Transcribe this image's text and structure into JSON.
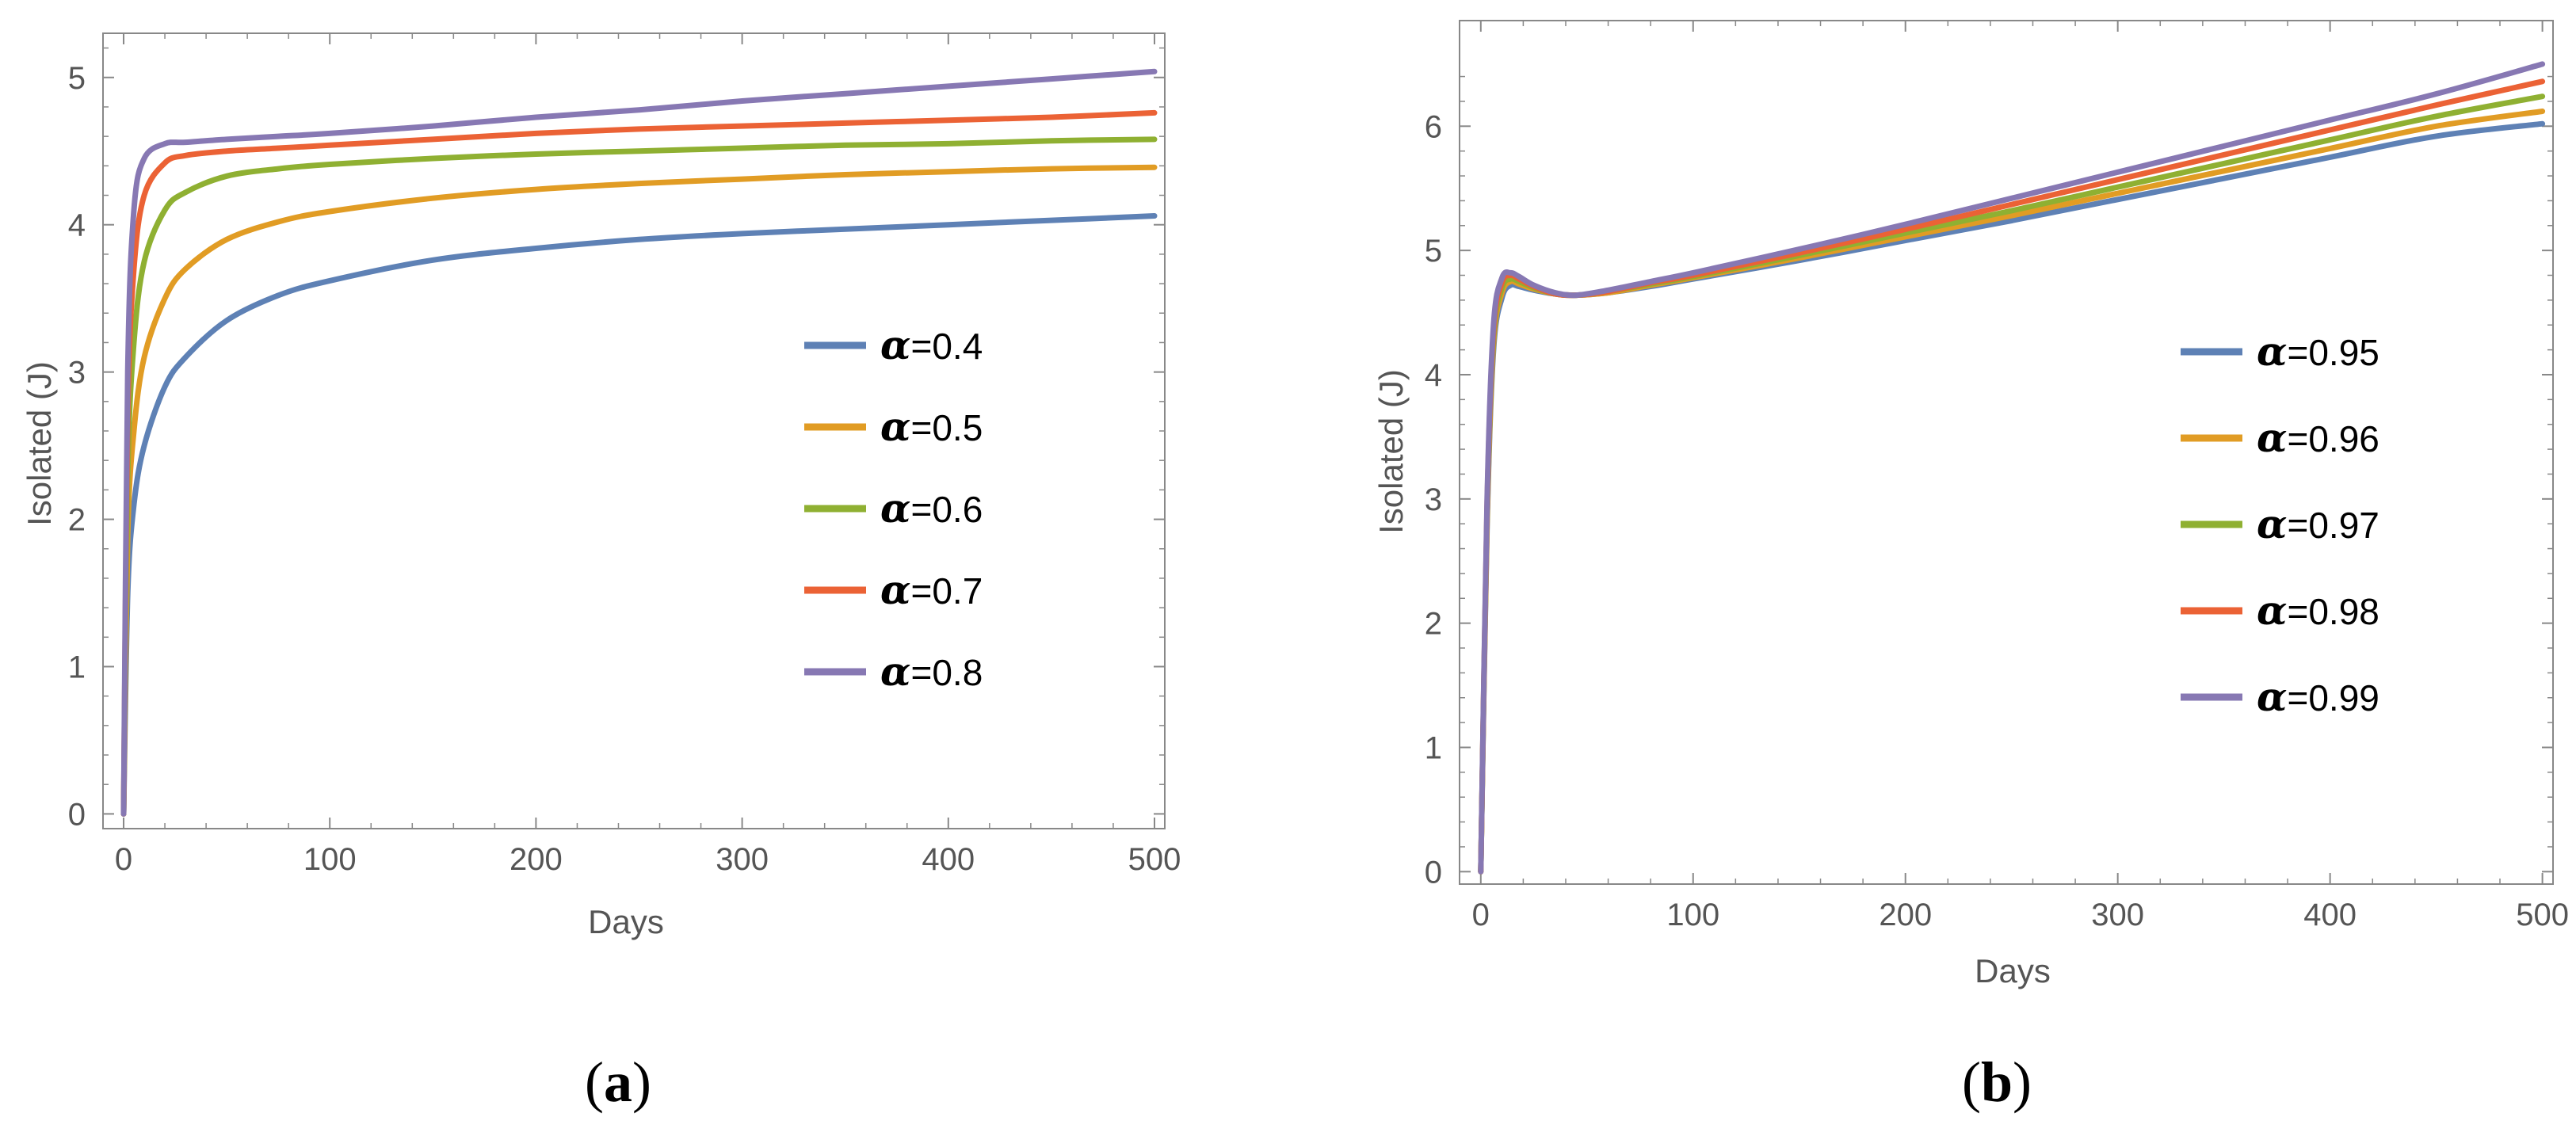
{
  "chart_data": [
    {
      "type": "line",
      "panel_label": "a",
      "xlabel": "Days",
      "ylabel": "Isolated (J)",
      "xlim": [
        -10,
        505
      ],
      "ylim": [
        -0.1,
        5.3
      ],
      "xticks": [
        0,
        100,
        200,
        300,
        400,
        500
      ],
      "xtick_labels": [
        "0",
        "100",
        "200",
        "300",
        "400",
        "500"
      ],
      "yticks": [
        0,
        1,
        2,
        3,
        4,
        5
      ],
      "ytick_labels": [
        "0",
        "1",
        "2",
        "3",
        "4",
        "5"
      ],
      "legend_position": "center-right",
      "legend_symbol": "α",
      "series": [
        {
          "name": "α=0.4",
          "symbol": "α",
          "value_label": "=0.4",
          "color": "#5E81B5",
          "x": [
            0,
            2,
            5,
            10,
            20,
            30,
            50,
            75,
            100,
            150,
            200,
            250,
            300,
            350,
            400,
            450,
            500
          ],
          "y": [
            0,
            1.5,
            2.1,
            2.5,
            2.9,
            3.1,
            3.35,
            3.52,
            3.62,
            3.76,
            3.84,
            3.9,
            3.94,
            3.97,
            4.0,
            4.03,
            4.06
          ]
        },
        {
          "name": "α=0.5",
          "symbol": "α",
          "value_label": "=0.5",
          "color": "#E19C24",
          "x": [
            0,
            2,
            5,
            10,
            20,
            30,
            50,
            75,
            100,
            150,
            200,
            250,
            300,
            350,
            400,
            450,
            500
          ],
          "y": [
            0,
            1.9,
            2.6,
            3.1,
            3.5,
            3.7,
            3.9,
            4.02,
            4.09,
            4.18,
            4.24,
            4.28,
            4.31,
            4.34,
            4.36,
            4.38,
            4.39
          ]
        },
        {
          "name": "α=0.6",
          "symbol": "α",
          "value_label": "=0.6",
          "color": "#8FB032",
          "x": [
            0,
            2,
            5,
            10,
            20,
            30,
            50,
            75,
            100,
            150,
            200,
            250,
            300,
            350,
            400,
            450,
            500
          ],
          "y": [
            0,
            2.3,
            3.2,
            3.75,
            4.1,
            4.22,
            4.33,
            4.38,
            4.41,
            4.45,
            4.48,
            4.5,
            4.52,
            4.54,
            4.55,
            4.57,
            4.58
          ]
        },
        {
          "name": "α=0.7",
          "symbol": "α",
          "value_label": "=0.7",
          "color": "#EB6235",
          "x": [
            0,
            2,
            5,
            10,
            20,
            30,
            50,
            75,
            100,
            150,
            200,
            250,
            300,
            350,
            400,
            450,
            500
          ],
          "y": [
            0,
            2.7,
            3.7,
            4.2,
            4.42,
            4.47,
            4.5,
            4.52,
            4.54,
            4.58,
            4.62,
            4.65,
            4.67,
            4.69,
            4.71,
            4.73,
            4.76
          ]
        },
        {
          "name": "α=0.8",
          "symbol": "α",
          "value_label": "=0.8",
          "color": "#8778B3",
          "x": [
            0,
            2,
            5,
            10,
            20,
            30,
            50,
            75,
            100,
            150,
            200,
            250,
            300,
            350,
            400,
            450,
            500
          ],
          "y": [
            0,
            3.0,
            4.1,
            4.45,
            4.55,
            4.56,
            4.58,
            4.6,
            4.62,
            4.67,
            4.73,
            4.78,
            4.84,
            4.89,
            4.94,
            4.99,
            5.04
          ]
        }
      ]
    },
    {
      "type": "line",
      "panel_label": "b",
      "xlabel": "Days",
      "ylabel": "Isolated (J)",
      "xlim": [
        -10,
        505
      ],
      "ylim": [
        -0.1,
        6.85
      ],
      "xticks": [
        0,
        100,
        200,
        300,
        400,
        500
      ],
      "xtick_labels": [
        "0",
        "100",
        "200",
        "300",
        "400",
        "500"
      ],
      "yticks": [
        0,
        1,
        2,
        3,
        4,
        5,
        6
      ],
      "ytick_labels": [
        "0",
        "1",
        "2",
        "3",
        "4",
        "5",
        "6"
      ],
      "legend_position": "center-right",
      "legend_symbol": "α",
      "series": [
        {
          "name": "α=0.95",
          "symbol": "α",
          "value_label": "=0.95",
          "color": "#5E81B5",
          "x": [
            0,
            3,
            6,
            10,
            14,
            18,
            25,
            35,
            45,
            60,
            80,
            100,
            150,
            200,
            250,
            300,
            350,
            400,
            450,
            500
          ],
          "y": [
            0,
            2.8,
            4.2,
            4.62,
            4.72,
            4.71,
            4.68,
            4.65,
            4.64,
            4.66,
            4.71,
            4.77,
            4.92,
            5.08,
            5.24,
            5.41,
            5.58,
            5.75,
            5.92,
            6.02
          ]
        },
        {
          "name": "α=0.96",
          "symbol": "α",
          "value_label": "=0.96",
          "color": "#E19C24",
          "x": [
            0,
            3,
            6,
            10,
            14,
            18,
            25,
            35,
            45,
            60,
            80,
            100,
            150,
            200,
            250,
            300,
            350,
            400,
            450,
            500
          ],
          "y": [
            0,
            2.85,
            4.25,
            4.66,
            4.75,
            4.73,
            4.69,
            4.65,
            4.64,
            4.66,
            4.72,
            4.78,
            4.94,
            5.11,
            5.28,
            5.46,
            5.64,
            5.82,
            6.0,
            6.12
          ]
        },
        {
          "name": "α=0.97",
          "symbol": "α",
          "value_label": "=0.97",
          "color": "#8FB032",
          "x": [
            0,
            3,
            6,
            10,
            14,
            18,
            25,
            35,
            45,
            60,
            80,
            100,
            150,
            200,
            250,
            300,
            350,
            400,
            450,
            500
          ],
          "y": [
            0,
            2.9,
            4.3,
            4.7,
            4.77,
            4.75,
            4.7,
            4.65,
            4.64,
            4.67,
            4.73,
            4.79,
            4.96,
            5.14,
            5.32,
            5.51,
            5.7,
            5.89,
            6.08,
            6.24
          ]
        },
        {
          "name": "α=0.98",
          "symbol": "α",
          "value_label": "=0.98",
          "color": "#EB6235",
          "x": [
            0,
            3,
            6,
            10,
            14,
            18,
            25,
            35,
            45,
            60,
            80,
            100,
            150,
            200,
            250,
            300,
            350,
            400,
            450,
            500
          ],
          "y": [
            0,
            2.95,
            4.35,
            4.74,
            4.8,
            4.77,
            4.71,
            4.65,
            4.64,
            4.67,
            4.74,
            4.8,
            4.98,
            5.17,
            5.37,
            5.57,
            5.77,
            5.97,
            6.17,
            6.36
          ]
        },
        {
          "name": "α=0.99",
          "symbol": "α",
          "value_label": "=0.99",
          "color": "#8778B3",
          "x": [
            0,
            3,
            6,
            10,
            14,
            18,
            25,
            35,
            45,
            60,
            80,
            100,
            150,
            200,
            250,
            300,
            350,
            400,
            450,
            500
          ],
          "y": [
            0,
            3.0,
            4.4,
            4.78,
            4.82,
            4.79,
            4.72,
            4.66,
            4.64,
            4.68,
            4.75,
            4.82,
            5.01,
            5.21,
            5.42,
            5.63,
            5.84,
            6.05,
            6.26,
            6.5
          ]
        }
      ]
    }
  ]
}
